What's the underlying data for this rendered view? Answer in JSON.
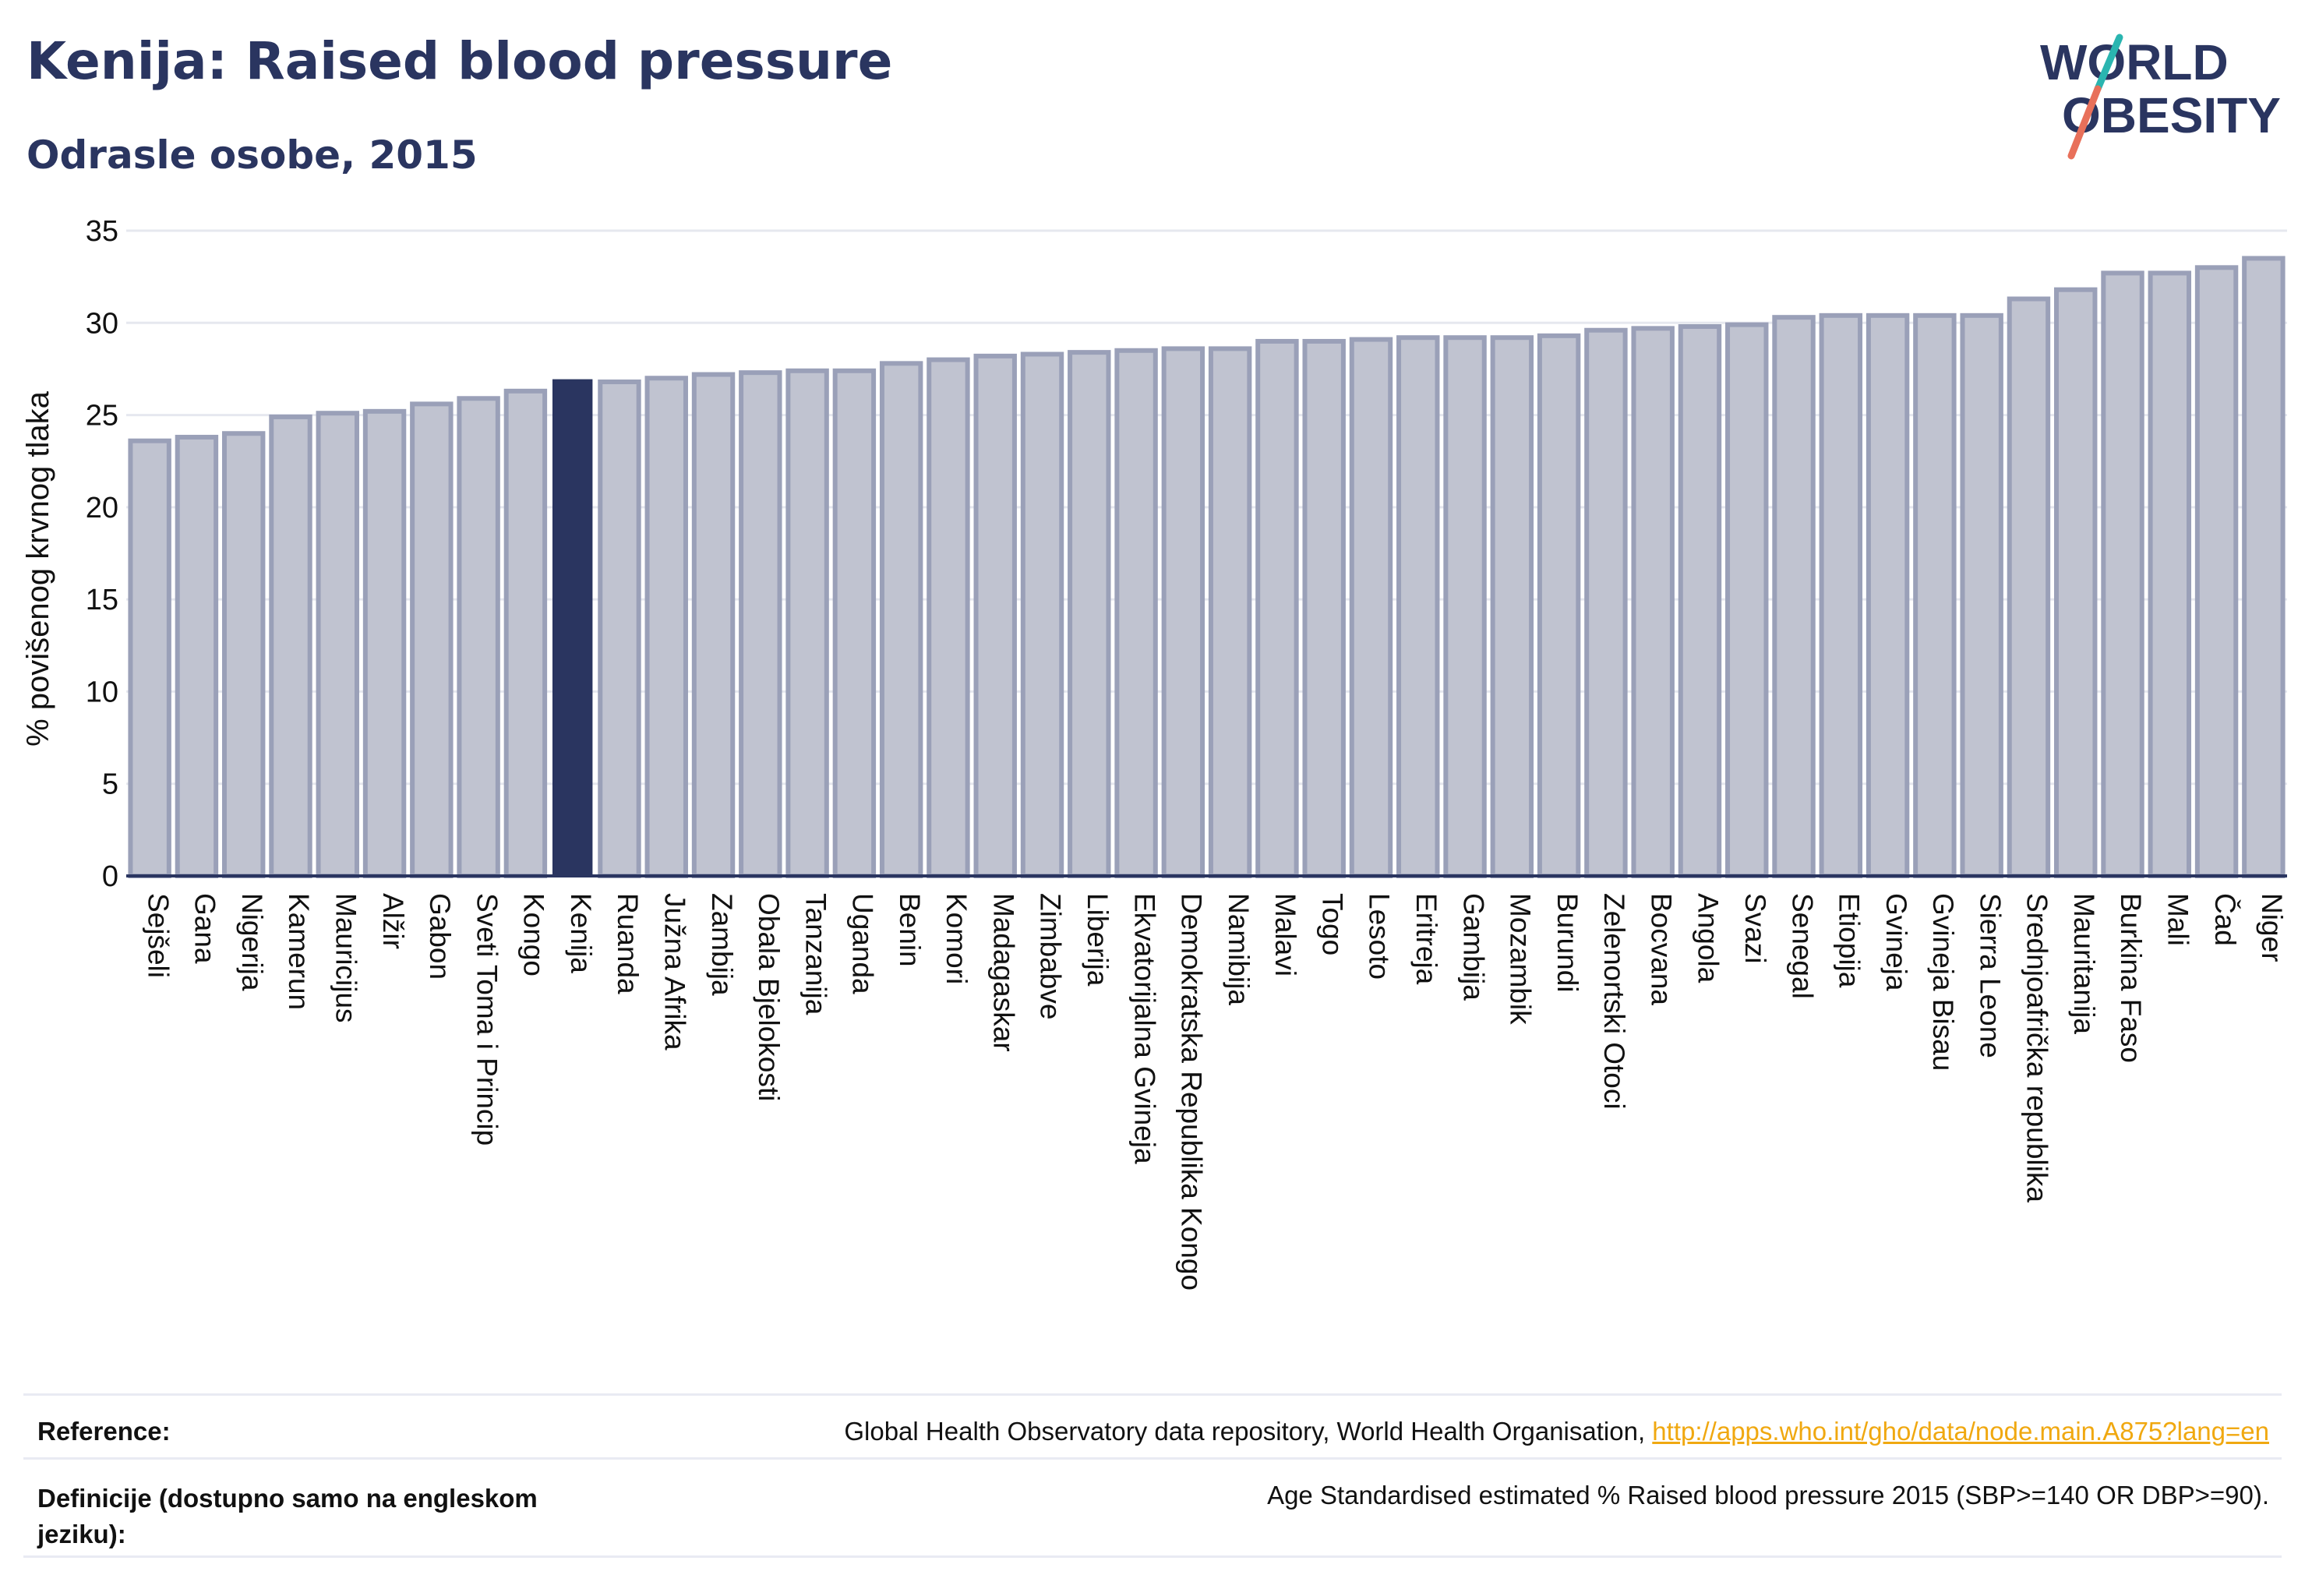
{
  "header": {
    "title": "Kenija: Raised blood pressure",
    "subtitle": "Odrasle osobe, 2015"
  },
  "logo": {
    "line1": "WORLD",
    "line2": "OBESITY",
    "colors": {
      "text": "#2a3560",
      "slash_teal": "#2ab5b0",
      "slash_coral": "#e8705a"
    }
  },
  "chart_data": {
    "type": "bar",
    "title": "Kenija: Raised blood pressure",
    "subtitle": "Odrasle osobe, 2015",
    "ylabel": "% povišenog krvnog tlaka",
    "xlabel": "",
    "ylim": [
      0,
      35
    ],
    "yticks": [
      0,
      5,
      10,
      15,
      20,
      25,
      30,
      35
    ],
    "grid": true,
    "highlight": "Kenija",
    "colors": {
      "bar": "#c0c3d0",
      "bar_edge": "#9aa0b8",
      "highlight": "#2a3560",
      "grid": "#e6e8ef",
      "axis": "#2a3560"
    },
    "categories": [
      "Sejšeli",
      "Gana",
      "Nigerija",
      "Kamerun",
      "Mauricijus",
      "Alžir",
      "Gabon",
      "Sveti Toma i Princip",
      "Kongo",
      "Kenija",
      "Ruanda",
      "Južna Afrika",
      "Zambija",
      "Obala Bjelokosti",
      "Tanzanija",
      "Uganda",
      "Benin",
      "Komori",
      "Madagaskar",
      "Zimbabve",
      "Liberija",
      "Ekvatorijalna Gvineja",
      "Demokratska Republika Kongo",
      "Namibija",
      "Malavi",
      "Togo",
      "Lesoto",
      "Eritreja",
      "Gambija",
      "Mozambik",
      "Burundi",
      "Zelenortski Otoci",
      "Bocvana",
      "Angola",
      "Svazi",
      "Senegal",
      "Etiopija",
      "Gvineja",
      "Gvineja Bisau",
      "Sierra Leone",
      "Srednjoafrička republika",
      "Mauritanija",
      "Burkina Faso",
      "Mali",
      "Čad",
      "Niger"
    ],
    "values": [
      23.6,
      23.8,
      24.0,
      24.9,
      25.1,
      25.2,
      25.6,
      25.9,
      26.3,
      26.9,
      26.8,
      27.0,
      27.2,
      27.3,
      27.4,
      27.4,
      27.8,
      28.0,
      28.2,
      28.3,
      28.4,
      28.5,
      28.6,
      28.6,
      29.0,
      29.0,
      29.1,
      29.2,
      29.2,
      29.2,
      29.3,
      29.6,
      29.7,
      29.8,
      29.9,
      30.3,
      30.4,
      30.4,
      30.4,
      30.4,
      31.3,
      31.8,
      32.7,
      32.7,
      33.0,
      33.5
    ]
  },
  "footer": {
    "reference_label": "Reference:",
    "reference_text": "Global Health Observatory data repository, World Health Organisation, ",
    "reference_link": "http://apps.who.int/gho/data/node.main.A875?lang=en",
    "definitions_label": "Definicije (dostupno samo na engleskom jeziku):",
    "definitions_text": "Age Standardised estimated % Raised blood pressure 2015 (SBP>=140 OR DBP>=90)."
  }
}
